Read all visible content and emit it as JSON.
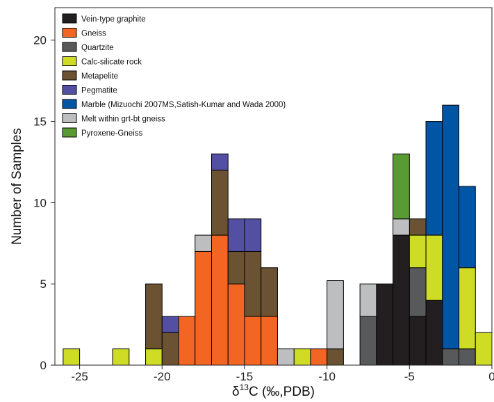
{
  "chart_data": {
    "type": "bar",
    "stacked": true,
    "xlabel": "δ¹³C (‰,PDB)",
    "xlabel_parts": {
      "base": "δ",
      "sup": "13",
      "rest": "C (‰,PDB)"
    },
    "ylabel": "Number of Samples",
    "xlim": [
      -26.5,
      0
    ],
    "ylim": [
      0,
      22
    ],
    "bin_width": 1,
    "x_ticks": [
      -25,
      -20,
      -15,
      -10,
      -5,
      0
    ],
    "x_tick_labels": [
      "-25",
      "-20",
      "-15",
      "-10",
      "-5",
      "0"
    ],
    "y_ticks": [
      0,
      5,
      10,
      15,
      20
    ],
    "y_tick_labels": [
      "0",
      "5",
      "10",
      "15",
      "20"
    ],
    "legend_position": "top-left",
    "series": [
      {
        "name": "Vein-type graphite",
        "color": "#231f20",
        "bins": [
          [
            -7,
            5
          ],
          [
            -6,
            8
          ],
          [
            -5,
            3
          ],
          [
            -4,
            4
          ]
        ]
      },
      {
        "name": "Gneiss",
        "color": "#f26522",
        "bins": [
          [
            -20,
            0
          ],
          [
            -19,
            3
          ],
          [
            -18,
            7
          ],
          [
            -17,
            8
          ],
          [
            -16,
            5
          ],
          [
            -15,
            3
          ],
          [
            -14,
            3
          ],
          [
            -11,
            1
          ]
        ]
      },
      {
        "name": "Quartzite",
        "color": "#58595b",
        "bins": [
          [
            -8,
            3
          ],
          [
            -5,
            3
          ],
          [
            -3,
            1
          ],
          [
            -2,
            1
          ]
        ]
      },
      {
        "name": "Calc-silicate rock",
        "color": "#cfdc26",
        "bins": [
          [
            -26,
            1
          ],
          [
            -23,
            1
          ],
          [
            -21,
            1
          ],
          [
            -12,
            1
          ],
          [
            -5,
            2
          ],
          [
            -4,
            4
          ],
          [
            -2,
            5
          ],
          [
            -1,
            2
          ]
        ]
      },
      {
        "name": "Metapelite",
        "color": "#6b5233",
        "bins": [
          [
            -21,
            4
          ],
          [
            -20,
            2
          ],
          [
            -17,
            4
          ],
          [
            -16,
            2
          ],
          [
            -15,
            4
          ],
          [
            -14,
            3
          ],
          [
            -10,
            1
          ],
          [
            -5,
            1
          ]
        ]
      },
      {
        "name": "Pegmatite",
        "color": "#5350a4",
        "bins": [
          [
            -20,
            1
          ],
          [
            -17,
            1
          ],
          [
            -16,
            2
          ],
          [
            -15,
            2
          ]
        ]
      },
      {
        "name": "Marble (Mizuochi 2007MS,Satish-Kumar and Wada 2000)",
        "color": "#0055a5",
        "bins": [
          [
            -4,
            7
          ],
          [
            -3,
            15
          ],
          [
            -2,
            5
          ]
        ]
      },
      {
        "name": "Melt within grt-bt gneiss",
        "color": "#bcbec0",
        "bins": [
          [
            -18,
            1
          ],
          [
            -13,
            1
          ],
          [
            -10,
            4.2
          ],
          [
            -8,
            2
          ],
          [
            -6,
            1
          ]
        ]
      },
      {
        "name": "Pyroxene-Gneiss",
        "color": "#5a9a33",
        "bins": [
          [
            -6,
            4
          ]
        ]
      }
    ]
  }
}
